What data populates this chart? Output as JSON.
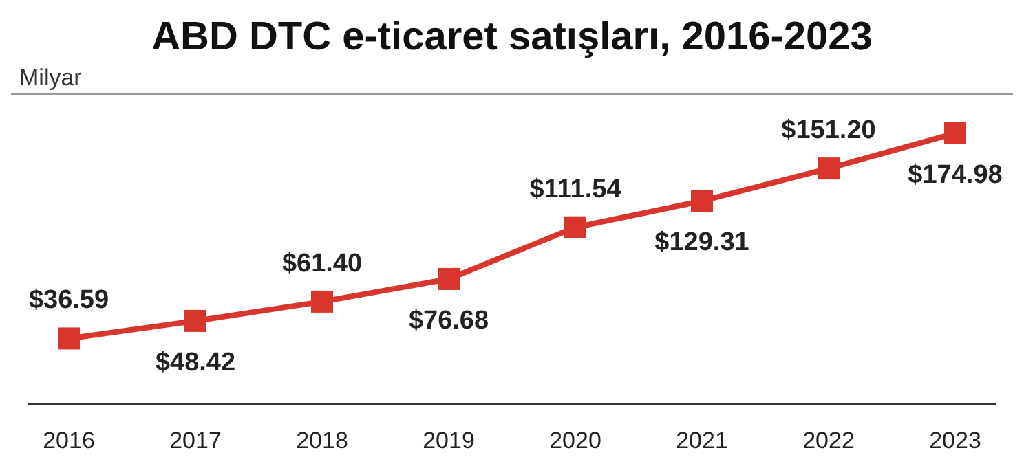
{
  "chart_data": {
    "type": "line",
    "title": "ABD DTC e-ticaret satışları, 2016-2023",
    "ylabel": "Milyar",
    "categories": [
      "2016",
      "2017",
      "2018",
      "2019",
      "2020",
      "2021",
      "2022",
      "2023"
    ],
    "series": [
      {
        "color": "#d8362c",
        "values": [
          36.59,
          48.42,
          61.4,
          76.68,
          111.54,
          129.31,
          151.2,
          174.98
        ],
        "value_labels": [
          "$36.59",
          "$48.42",
          "$61.40",
          "$76.68",
          "$111.54",
          "$129.31",
          "$151.20",
          "$174.98"
        ]
      }
    ],
    "marker": "square",
    "line_style": "solid"
  }
}
